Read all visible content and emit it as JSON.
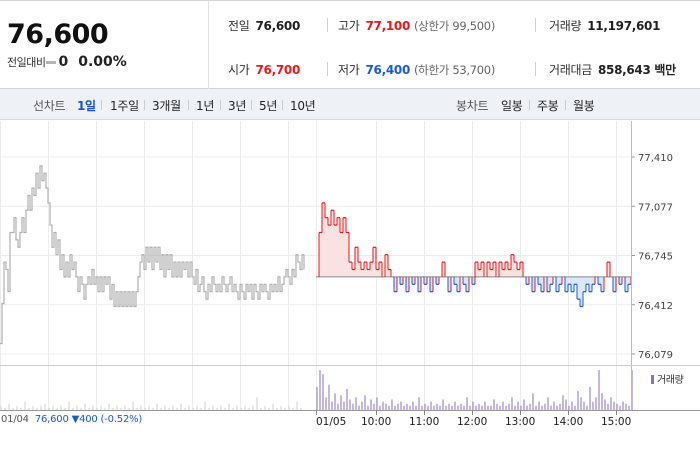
{
  "quote": {
    "price": "76,600",
    "change_label": "전일대비",
    "change_value": "0",
    "change_rate": "0.00%"
  },
  "stats": {
    "prev_close_label": "전일",
    "prev_close": "76,600",
    "high_label": "고가",
    "high": "77,100",
    "high_sub": "(상한가 99,500)",
    "volume_label": "거래량",
    "volume": "11,197,601",
    "open_label": "시가",
    "open": "76,700",
    "low_label": "저가",
    "low": "76,400",
    "low_sub": "(하한가 53,700)",
    "amount_label": "거래대금",
    "amount": "858,643 백만"
  },
  "line_tabs": {
    "title": "선차트",
    "items": [
      {
        "label": "1일",
        "active": true
      },
      {
        "label": "1주일"
      },
      {
        "label": "3개월"
      },
      {
        "label": "1년"
      },
      {
        "label": "3년"
      },
      {
        "label": "5년"
      },
      {
        "label": "10년"
      }
    ]
  },
  "candle_tabs": {
    "title": "봉차트",
    "items": [
      {
        "label": "일봉"
      },
      {
        "label": "주봉"
      },
      {
        "label": "월봉"
      }
    ]
  },
  "chart_data": {
    "type": "line",
    "y_ticks": [
      "77,410",
      "77,077",
      "76,745",
      "76,412",
      "76,079"
    ],
    "ylim": [
      76079,
      77410
    ],
    "reference_line": 76600,
    "x_ticks": [
      "01/05",
      "10:00",
      "11:00",
      "12:00",
      "13:00",
      "14:00",
      "15:00"
    ],
    "prev_day": {
      "label": "01/04",
      "points": [
        [
          0,
          76150
        ],
        [
          2,
          76420
        ],
        [
          4,
          76700
        ],
        [
          6,
          76650
        ],
        [
          8,
          76500
        ],
        [
          10,
          76900
        ],
        [
          12,
          76900
        ],
        [
          14,
          77000
        ],
        [
          16,
          76850
        ],
        [
          18,
          76800
        ],
        [
          20,
          76900
        ],
        [
          22,
          77000
        ],
        [
          24,
          76900
        ],
        [
          26,
          77050
        ],
        [
          28,
          77150
        ],
        [
          30,
          77050
        ],
        [
          32,
          77200
        ],
        [
          34,
          77150
        ],
        [
          36,
          77300
        ],
        [
          38,
          77200
        ],
        [
          40,
          77350
        ],
        [
          42,
          77250
        ],
        [
          44,
          77300
        ],
        [
          46,
          77200
        ],
        [
          48,
          77100
        ],
        [
          50,
          76950
        ],
        [
          52,
          76800
        ],
        [
          54,
          76900
        ],
        [
          56,
          76750
        ],
        [
          58,
          76850
        ],
        [
          60,
          76650
        ],
        [
          62,
          76750
        ],
        [
          64,
          76600
        ],
        [
          66,
          76700
        ],
        [
          68,
          76600
        ],
        [
          70,
          76750
        ],
        [
          72,
          76650
        ],
        [
          74,
          76700
        ],
        [
          76,
          76600
        ],
        [
          78,
          76500
        ],
        [
          80,
          76600
        ],
        [
          82,
          76550
        ],
        [
          84,
          76450
        ],
        [
          86,
          76550
        ],
        [
          88,
          76600
        ],
        [
          90,
          76550
        ],
        [
          92,
          76650
        ],
        [
          94,
          76550
        ],
        [
          96,
          76600
        ],
        [
          98,
          76500
        ],
        [
          100,
          76600
        ],
        [
          102,
          76500
        ],
        [
          104,
          76600
        ],
        [
          106,
          76550
        ],
        [
          108,
          76600
        ],
        [
          110,
          76450
        ],
        [
          112,
          76550
        ],
        [
          114,
          76400
        ],
        [
          116,
          76500
        ],
        [
          118,
          76400
        ],
        [
          120,
          76500
        ],
        [
          122,
          76400
        ],
        [
          124,
          76500
        ],
        [
          126,
          76400
        ],
        [
          128,
          76500
        ],
        [
          130,
          76400
        ],
        [
          132,
          76500
        ],
        [
          134,
          76400
        ],
        [
          136,
          76500
        ],
        [
          138,
          76600
        ],
        [
          140,
          76700
        ],
        [
          142,
          76750
        ],
        [
          144,
          76650
        ],
        [
          146,
          76800
        ],
        [
          148,
          76700
        ],
        [
          150,
          76800
        ],
        [
          152,
          76650
        ],
        [
          154,
          76800
        ],
        [
          156,
          76700
        ],
        [
          158,
          76800
        ],
        [
          160,
          76650
        ],
        [
          162,
          76750
        ],
        [
          164,
          76600
        ],
        [
          166,
          76750
        ],
        [
          168,
          76650
        ],
        [
          170,
          76750
        ],
        [
          172,
          76600
        ],
        [
          174,
          76700
        ],
        [
          176,
          76600
        ],
        [
          178,
          76700
        ],
        [
          180,
          76600
        ],
        [
          182,
          76700
        ],
        [
          184,
          76650
        ],
        [
          186,
          76700
        ],
        [
          188,
          76600
        ],
        [
          190,
          76700
        ],
        [
          192,
          76600
        ],
        [
          194,
          76550
        ],
        [
          196,
          76650
        ],
        [
          198,
          76500
        ],
        [
          200,
          76550
        ],
        [
          202,
          76600
        ],
        [
          204,
          76500
        ],
        [
          206,
          76450
        ],
        [
          208,
          76550
        ],
        [
          210,
          76500
        ],
        [
          212,
          76600
        ],
        [
          214,
          76550
        ],
        [
          216,
          76500
        ],
        [
          218,
          76550
        ],
        [
          220,
          76500
        ],
        [
          222,
          76600
        ],
        [
          224,
          76550
        ],
        [
          226,
          76500
        ],
        [
          228,
          76550
        ],
        [
          230,
          76600
        ],
        [
          232,
          76500
        ],
        [
          234,
          76550
        ],
        [
          236,
          76500
        ],
        [
          238,
          76450
        ],
        [
          240,
          76550
        ],
        [
          242,
          76500
        ],
        [
          244,
          76450
        ],
        [
          246,
          76550
        ],
        [
          248,
          76500
        ],
        [
          250,
          76550
        ],
        [
          252,
          76450
        ],
        [
          254,
          76550
        ],
        [
          256,
          76500
        ],
        [
          258,
          76450
        ],
        [
          260,
          76550
        ],
        [
          262,
          76500
        ],
        [
          264,
          76550
        ],
        [
          266,
          76500
        ],
        [
          268,
          76450
        ],
        [
          270,
          76550
        ],
        [
          272,
          76500
        ],
        [
          274,
          76550
        ],
        [
          276,
          76500
        ],
        [
          278,
          76600
        ],
        [
          280,
          76500
        ],
        [
          282,
          76550
        ],
        [
          284,
          76600
        ],
        [
          286,
          76650
        ],
        [
          288,
          76600
        ],
        [
          290,
          76550
        ],
        [
          292,
          76650
        ],
        [
          294,
          76600
        ],
        [
          296,
          76750
        ],
        [
          298,
          76700
        ],
        [
          300,
          76650
        ],
        [
          302,
          76750
        ],
        [
          304,
          76650
        ]
      ]
    },
    "today": {
      "label": "01/05",
      "points": [
        [
          0,
          76600
        ],
        [
          3,
          76900
        ],
        [
          6,
          77100
        ],
        [
          9,
          77000
        ],
        [
          12,
          76950
        ],
        [
          15,
          77050
        ],
        [
          18,
          76950
        ],
        [
          21,
          77000
        ],
        [
          24,
          76900
        ],
        [
          27,
          77000
        ],
        [
          30,
          76900
        ],
        [
          33,
          76700
        ],
        [
          36,
          76650
        ],
        [
          39,
          76800
        ],
        [
          42,
          76700
        ],
        [
          45,
          76650
        ],
        [
          48,
          76700
        ],
        [
          51,
          76650
        ],
        [
          54,
          76700
        ],
        [
          57,
          76800
        ],
        [
          60,
          76650
        ],
        [
          63,
          76700
        ],
        [
          66,
          76600
        ],
        [
          69,
          76750
        ],
        [
          72,
          76650
        ],
        [
          75,
          76600
        ],
        [
          78,
          76500
        ],
        [
          81,
          76600
        ],
        [
          84,
          76550
        ],
        [
          87,
          76600
        ],
        [
          90,
          76500
        ],
        [
          93,
          76600
        ],
        [
          96,
          76550
        ],
        [
          99,
          76600
        ],
        [
          102,
          76500
        ],
        [
          105,
          76600
        ],
        [
          108,
          76550
        ],
        [
          111,
          76600
        ],
        [
          114,
          76500
        ],
        [
          117,
          76600
        ],
        [
          120,
          76550
        ],
        [
          123,
          76600
        ],
        [
          126,
          76700
        ],
        [
          129,
          76600
        ],
        [
          132,
          76500
        ],
        [
          135,
          76600
        ],
        [
          138,
          76550
        ],
        [
          141,
          76500
        ],
        [
          144,
          76600
        ],
        [
          147,
          76550
        ],
        [
          150,
          76500
        ],
        [
          153,
          76600
        ],
        [
          156,
          76550
        ],
        [
          159,
          76700
        ],
        [
          162,
          76650
        ],
        [
          165,
          76700
        ],
        [
          168,
          76600
        ],
        [
          171,
          76700
        ],
        [
          174,
          76650
        ],
        [
          177,
          76700
        ],
        [
          180,
          76600
        ],
        [
          183,
          76700
        ],
        [
          186,
          76650
        ],
        [
          189,
          76700
        ],
        [
          192,
          76650
        ],
        [
          195,
          76750
        ],
        [
          198,
          76700
        ],
        [
          201,
          76650
        ],
        [
          204,
          76700
        ],
        [
          207,
          76600
        ],
        [
          210,
          76550
        ],
        [
          213,
          76600
        ],
        [
          216,
          76500
        ],
        [
          219,
          76600
        ],
        [
          222,
          76550
        ],
        [
          225,
          76500
        ],
        [
          228,
          76600
        ],
        [
          231,
          76500
        ],
        [
          234,
          76550
        ],
        [
          237,
          76600
        ],
        [
          240,
          76500
        ],
        [
          243,
          76550
        ],
        [
          246,
          76600
        ],
        [
          249,
          76500
        ],
        [
          252,
          76550
        ],
        [
          255,
          76500
        ],
        [
          258,
          76550
        ],
        [
          261,
          76450
        ],
        [
          264,
          76400
        ],
        [
          267,
          76500
        ],
        [
          270,
          76550
        ],
        [
          273,
          76500
        ],
        [
          276,
          76550
        ],
        [
          279,
          76600
        ],
        [
          282,
          76550
        ],
        [
          285,
          76500
        ],
        [
          288,
          76600
        ],
        [
          291,
          76700
        ],
        [
          294,
          76600
        ],
        [
          297,
          76500
        ],
        [
          300,
          76600
        ],
        [
          303,
          76550
        ],
        [
          306,
          76600
        ],
        [
          309,
          76500
        ],
        [
          312,
          76550
        ],
        [
          315,
          76600
        ]
      ],
      "volumes": [
        0.55,
        0.95,
        0.85,
        0.3,
        0.6,
        0.2,
        0.4,
        0.15,
        0.35,
        0.2,
        0.5,
        0.25,
        0.15,
        0.3,
        0.1,
        0.2,
        0.35,
        0.1,
        0.25,
        0.15,
        0.3,
        0.1,
        0.2,
        0.15,
        0.1,
        0.25,
        0.1,
        0.15,
        0.2,
        0.1,
        0.15,
        0.1,
        0.2,
        0.1,
        0.3,
        0.1,
        0.15,
        0.1,
        0.2,
        0.1,
        0.15,
        0.1,
        0.25,
        0.1,
        0.15,
        0.1,
        0.2,
        0.1,
        0.15,
        0.1,
        0.3,
        0.1,
        0.2,
        0.1,
        0.15,
        0.1,
        0.2,
        0.1,
        0.1,
        0.25,
        0.15,
        0.1,
        0.2,
        0.1,
        0.15,
        0.3,
        0.1,
        0.2,
        0.1,
        0.25,
        0.1,
        0.15,
        0.4,
        0.1,
        0.2,
        0.1,
        0.15,
        0.3,
        0.1,
        0.2,
        0.1,
        0.15,
        0.35,
        0.25,
        0.1,
        0.2,
        0.1,
        0.45,
        0.3,
        0.2,
        0.1,
        0.55,
        0.2,
        0.3,
        0.95,
        0.4,
        0.25,
        0.15,
        0.3,
        0.2,
        0.15,
        0.1,
        0.2,
        0.15,
        0.1,
        0.95
      ]
    },
    "prev_volumes": [
      0.1,
      0.05,
      0.15,
      0.05,
      0.1,
      0.05,
      0.2,
      0.05,
      0.1,
      0.05,
      0.1,
      0.15,
      0.05,
      0.1,
      0.05,
      0.1,
      0.05,
      0.2,
      0.05,
      0.1,
      0.05,
      0.15,
      0.05,
      0.1,
      0.05,
      0.1,
      0.05,
      0.15,
      0.05,
      0.1,
      0.05,
      0.1,
      0.05,
      0.2,
      0.05,
      0.1,
      0.05,
      0.1,
      0.05,
      0.15,
      0.05,
      0.1,
      0.05,
      0.1,
      0.05,
      0.15,
      0.05,
      0.1,
      0.05,
      0.1,
      0.05,
      0.2,
      0.05,
      0.1,
      0.05,
      0.1,
      0.05,
      0.15,
      0.05,
      0.1,
      0.05,
      0.1,
      0.05,
      0.1,
      0.3,
      0.05,
      0.1,
      0.05,
      0.15,
      0.05,
      0.1,
      0.05,
      0.1,
      0.05,
      0.2,
      0.05
    ],
    "legend": "거래량",
    "footer": {
      "date": "01/04",
      "price_text": "76,600 ▼400 (-0.52%)"
    },
    "colors": {
      "prev_line": "#b0b0b0",
      "up": "#e51a1a",
      "down": "#1a5bd7",
      "up_fill": "#fbe2e2",
      "down_fill": "#dde7fb",
      "volume": "#8a6fc3",
      "grid": "#ececec"
    }
  }
}
